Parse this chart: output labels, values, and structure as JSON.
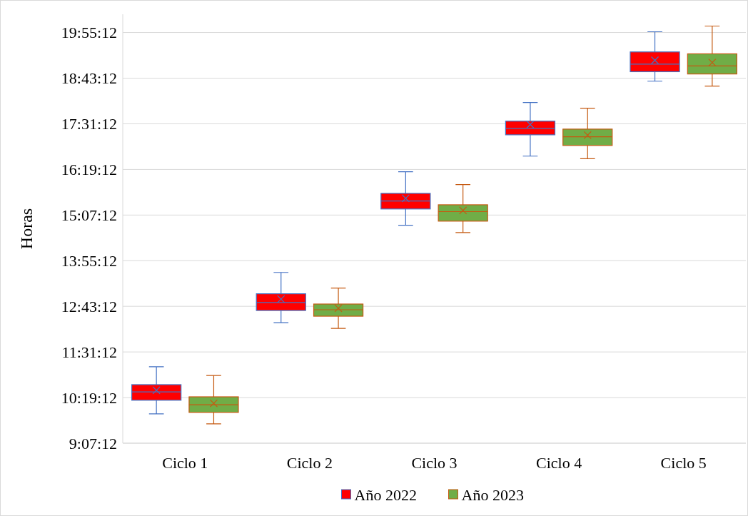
{
  "chart_data": {
    "type": "box",
    "ylabel": "Horas",
    "categories": [
      "Ciclo 1",
      "Ciclo 2",
      "Ciclo 3",
      "Ciclo 4",
      "Ciclo 5"
    ],
    "ylim": [
      9.12,
      20.4
    ],
    "yticks": [
      {
        "value": 9.12,
        "label": "9:07:12"
      },
      {
        "value": 10.32,
        "label": "10:19:12"
      },
      {
        "value": 11.52,
        "label": "11:31:12"
      },
      {
        "value": 12.72,
        "label": "12:43:12"
      },
      {
        "value": 13.92,
        "label": "13:55:12"
      },
      {
        "value": 15.12,
        "label": "15:07:12"
      },
      {
        "value": 16.32,
        "label": "16:19:12"
      },
      {
        "value": 17.52,
        "label": "17:31:12"
      },
      {
        "value": 18.72,
        "label": "18:43:12"
      },
      {
        "value": 19.92,
        "label": "19:55:12"
      }
    ],
    "grid": "y",
    "legend": "bottom",
    "marker": "cross",
    "series": [
      {
        "name": "Año 2022",
        "color": "#ff0000",
        "boxes": [
          {
            "low": 9.89,
            "q1": 10.25,
            "median": 10.47,
            "q3": 10.66,
            "high": 11.13,
            "mean": 10.51
          },
          {
            "low": 12.29,
            "q1": 12.61,
            "median": 12.82,
            "q3": 13.05,
            "high": 13.61,
            "mean": 12.91
          },
          {
            "low": 14.85,
            "q1": 15.28,
            "median": 15.49,
            "q3": 15.69,
            "high": 16.26,
            "mean": 15.56
          },
          {
            "low": 16.67,
            "q1": 17.23,
            "median": 17.4,
            "q3": 17.59,
            "high": 18.08,
            "mean": 17.5
          },
          {
            "low": 18.64,
            "q1": 18.89,
            "median": 19.09,
            "q3": 19.41,
            "high": 19.94,
            "mean": 19.19
          }
        ]
      },
      {
        "name": "Año 2023",
        "color": "#70ad47",
        "boxes": [
          {
            "low": 9.63,
            "q1": 9.93,
            "median": 10.13,
            "q3": 10.34,
            "high": 10.9,
            "mean": 10.17
          },
          {
            "low": 12.14,
            "q1": 12.46,
            "median": 12.63,
            "q3": 12.78,
            "high": 13.2,
            "mean": 12.67
          },
          {
            "low": 14.66,
            "q1": 14.96,
            "median": 15.21,
            "q3": 15.39,
            "high": 15.92,
            "mean": 15.24
          },
          {
            "low": 16.6,
            "q1": 16.95,
            "median": 17.18,
            "q3": 17.38,
            "high": 17.93,
            "mean": 17.22
          },
          {
            "low": 18.51,
            "q1": 18.83,
            "median": 19.04,
            "q3": 19.36,
            "high": 20.09,
            "mean": 19.13
          }
        ]
      }
    ]
  }
}
